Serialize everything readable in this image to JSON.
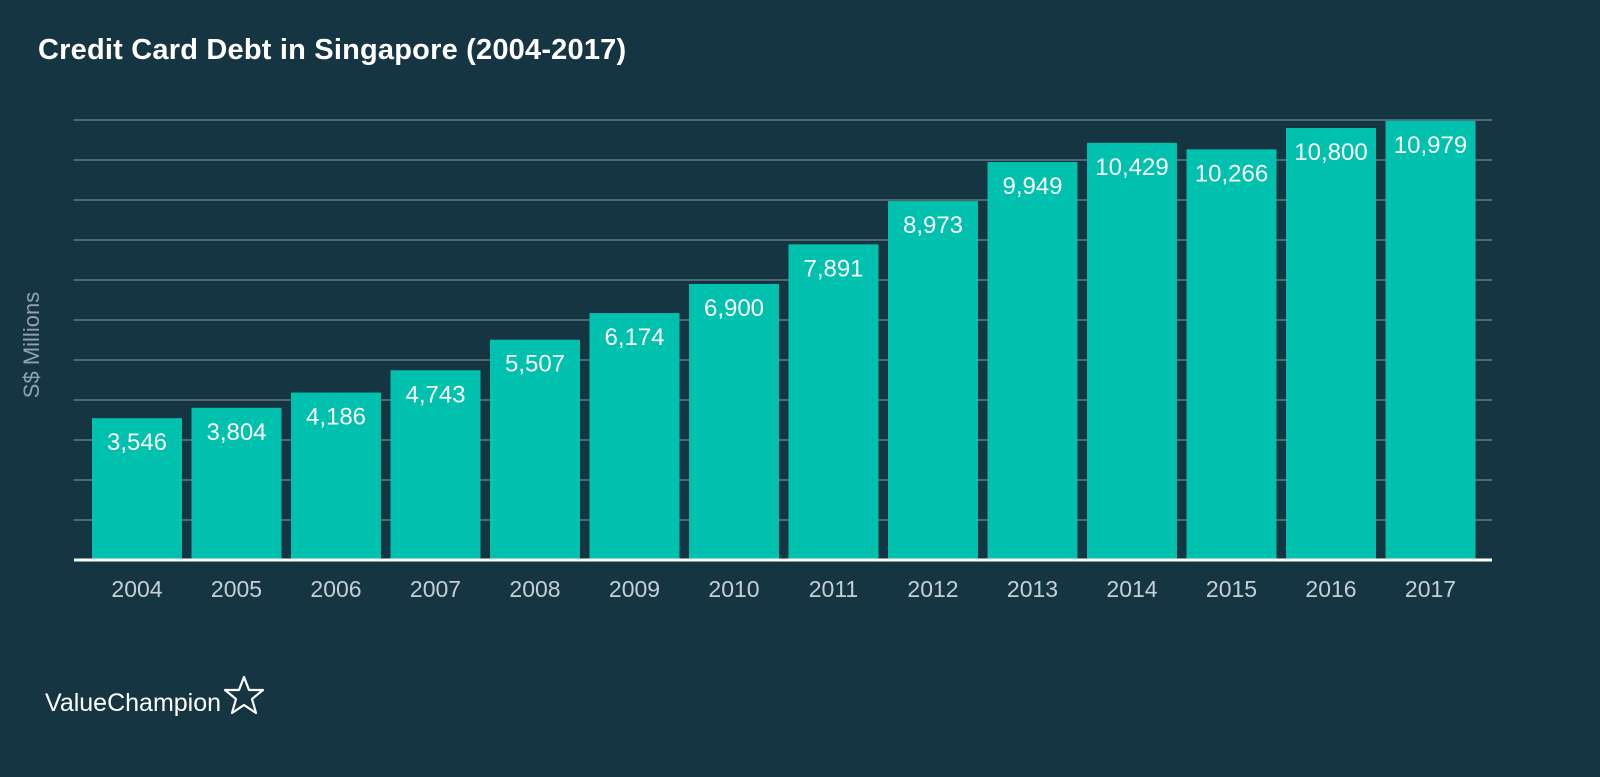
{
  "colors": {
    "background": "#163543",
    "bar": "#00c1ad",
    "grid": "#6f8791",
    "axis": "#ffffff",
    "tick_label": "#c5d0d5",
    "data_label": "#ffffff"
  },
  "chart_data": {
    "type": "bar",
    "title": "Credit Card Debt in Singapore (2004-2017)",
    "xlabel": "",
    "ylabel": "S$ Millions",
    "categories": [
      "2004",
      "2005",
      "2006",
      "2007",
      "2008",
      "2009",
      "2010",
      "2011",
      "2012",
      "2013",
      "2014",
      "2015",
      "2016",
      "2017"
    ],
    "values": [
      3546,
      3804,
      4186,
      4743,
      5507,
      6174,
      6900,
      7891,
      8973,
      9949,
      10429,
      10266,
      10800,
      10979
    ],
    "value_labels": [
      "3,546",
      "3,804",
      "4,186",
      "4,743",
      "5,507",
      "6,174",
      "6,900",
      "7,891",
      "8,973",
      "9,949",
      "10,429",
      "10,266",
      "10,800",
      "10,979"
    ],
    "ylim": [
      0,
      11000
    ],
    "grid": true,
    "legend": "none"
  },
  "brand": {
    "name": "ValueChampion",
    "icon": "star-outline-icon"
  }
}
